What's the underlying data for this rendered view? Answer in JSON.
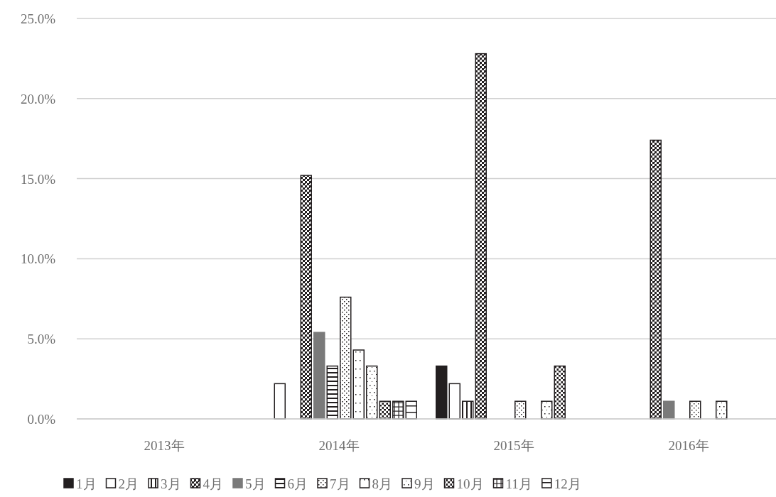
{
  "chart_data": {
    "type": "bar",
    "categories": [
      "2013年",
      "2014年",
      "2015年",
      "2016年"
    ],
    "series": [
      {
        "name": "1月",
        "color": "#231f20",
        "values": [
          0,
          0,
          3.3,
          0
        ]
      },
      {
        "name": "2月",
        "color": "#231f20",
        "values": [
          0,
          2.2,
          2.2,
          0
        ]
      },
      {
        "name": "3月",
        "color": "#231f20",
        "values": [
          0,
          0,
          1.1,
          0
        ]
      },
      {
        "name": "4月",
        "color": "#231f20",
        "values": [
          0,
          15.2,
          22.8,
          17.4
        ]
      },
      {
        "name": "5月",
        "color": "#7a7a7a",
        "values": [
          0,
          5.4,
          0,
          1.1
        ]
      },
      {
        "name": "6月",
        "color": "#231f20",
        "values": [
          0,
          3.3,
          0,
          0
        ]
      },
      {
        "name": "7月",
        "color": "#231f20",
        "values": [
          0,
          7.6,
          1.1,
          1.1
        ]
      },
      {
        "name": "8月",
        "color": "#231f20",
        "values": [
          0,
          4.3,
          0,
          0
        ]
      },
      {
        "name": "9月",
        "color": "#231f20",
        "values": [
          0,
          3.3,
          1.1,
          1.1
        ]
      },
      {
        "name": "10月",
        "color": "#231f20",
        "values": [
          0,
          1.1,
          3.3,
          0
        ]
      },
      {
        "name": "11月",
        "color": "#231f20",
        "values": [
          0,
          1.1,
          0,
          0
        ]
      },
      {
        "name": "12月",
        "color": "#231f20",
        "values": [
          0,
          1.1,
          0,
          0
        ]
      }
    ],
    "ylim": [
      0,
      25
    ],
    "yticks": [
      {
        "value": 0,
        "label": "0.0%"
      },
      {
        "value": 5,
        "label": "5.0%"
      },
      {
        "value": 10,
        "label": "10.0%"
      },
      {
        "value": 15,
        "label": "15.0%"
      },
      {
        "value": 20,
        "label": "20.0%"
      },
      {
        "value": 25,
        "label": "25.0%"
      }
    ],
    "grid": "y",
    "legend": "bottom"
  }
}
